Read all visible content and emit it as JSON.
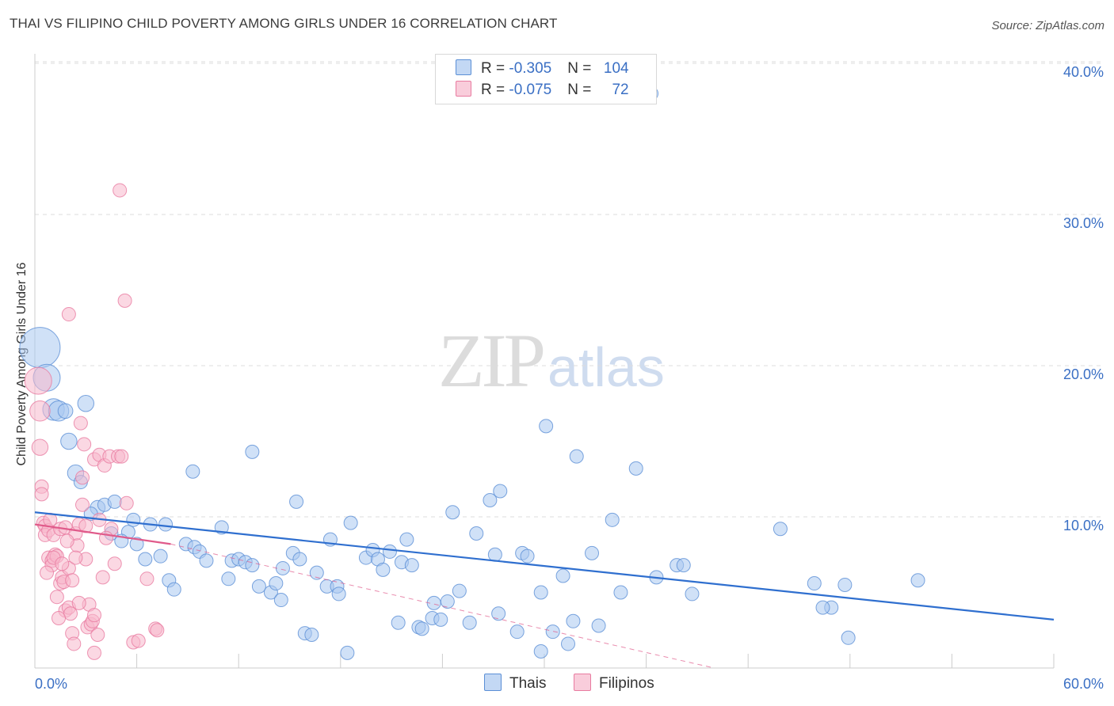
{
  "title": "THAI VS FILIPINO CHILD POVERTY AMONG GIRLS UNDER 16 CORRELATION CHART",
  "source": "Source: ZipAtlas.com",
  "watermark": {
    "zip": "ZIP",
    "atlas": "atlas"
  },
  "legend": {
    "rows": [
      {
        "r_label": "R = ",
        "r_value": "-0.305",
        "n_label": "N = ",
        "n_value": "104"
      },
      {
        "r_label": "R = ",
        "r_value": "-0.075",
        "n_label": "N = ",
        "n_value": "72"
      }
    ]
  },
  "bottom_legend": {
    "thais": "Thais",
    "filipinos": "Filipinos"
  },
  "colors": {
    "thais_fill": "#a9c8f0",
    "thais_stroke": "#5b8fd6",
    "thais_line": "#2f6fcf",
    "filipinos_fill": "#f7b8cc",
    "filipinos_stroke": "#e87ba0",
    "filipinos_line": "#e05a8a",
    "tick_label": "#3a6fc4",
    "grid": "#dddddd"
  },
  "chart_data": {
    "type": "scatter",
    "title": "THAI VS FILIPINO CHILD POVERTY AMONG GIRLS UNDER 16 CORRELATION CHART",
    "xlabel": "",
    "ylabel": "Child Poverty Among Girls Under 16",
    "xlim": [
      0,
      60
    ],
    "ylim": [
      0,
      40
    ],
    "x_tick_labels": [
      "0.0%",
      "60.0%"
    ],
    "y_ticks": [
      10,
      20,
      30,
      40
    ],
    "y_tick_labels": [
      "10.0%",
      "20.0%",
      "30.0%",
      "40.0%"
    ],
    "grid": true,
    "series": [
      {
        "name": "Thais",
        "R": -0.305,
        "N": 104,
        "trend": {
          "x": [
            0,
            60
          ],
          "y": [
            10.3,
            3.2
          ],
          "style": "solid"
        },
        "points": [
          [
            0.3,
            21.2,
            3
          ],
          [
            0.7,
            19.2,
            2
          ],
          [
            1.1,
            17.1,
            1.6
          ],
          [
            1.4,
            17.0,
            1.5
          ],
          [
            3.0,
            17.5,
            1.2
          ],
          [
            2.0,
            15.0,
            1.2
          ],
          [
            2.4,
            12.9,
            1.2
          ],
          [
            2.7,
            12.3,
            1
          ],
          [
            3.7,
            10.6,
            1.1
          ],
          [
            4.1,
            10.8,
            1
          ],
          [
            4.7,
            11.0,
            1
          ],
          [
            3.3,
            10.2,
            1
          ],
          [
            4.5,
            8.9,
            1
          ],
          [
            5.5,
            9.0,
            1
          ],
          [
            5.8,
            9.8,
            1
          ],
          [
            6.0,
            8.2,
            1
          ],
          [
            5.1,
            8.4,
            1
          ],
          [
            6.8,
            9.5,
            1
          ],
          [
            7.7,
            9.5,
            1
          ],
          [
            6.5,
            7.2,
            1
          ],
          [
            7.4,
            7.4,
            1
          ],
          [
            7.9,
            5.8,
            1
          ],
          [
            8.2,
            5.2,
            1
          ],
          [
            8.9,
            8.2,
            1
          ],
          [
            9.4,
            8.0,
            1
          ],
          [
            9.7,
            7.7,
            1
          ],
          [
            10.1,
            7.1,
            1
          ],
          [
            9.3,
            13.0,
            1
          ],
          [
            11.0,
            9.3,
            1
          ],
          [
            11.4,
            5.9,
            1
          ],
          [
            11.6,
            7.1,
            1
          ],
          [
            12.0,
            7.2,
            1
          ],
          [
            12.4,
            7.0,
            1
          ],
          [
            12.8,
            6.8,
            1
          ],
          [
            13.2,
            5.4,
            1
          ],
          [
            13.9,
            5.0,
            1
          ],
          [
            14.2,
            5.6,
            1
          ],
          [
            14.5,
            4.5,
            1
          ],
          [
            12.8,
            14.3,
            1
          ],
          [
            14.6,
            6.6,
            1
          ],
          [
            15.2,
            7.6,
            1
          ],
          [
            15.6,
            7.2,
            1
          ],
          [
            15.4,
            11.0,
            1
          ],
          [
            15.9,
            2.3,
            1
          ],
          [
            16.3,
            2.2,
            1
          ],
          [
            16.6,
            6.3,
            1
          ],
          [
            17.2,
            5.4,
            1
          ],
          [
            17.4,
            8.5,
            1
          ],
          [
            17.8,
            5.4,
            1
          ],
          [
            17.9,
            4.9,
            1
          ],
          [
            18.6,
            9.6,
            1
          ],
          [
            18.4,
            1.0,
            1
          ],
          [
            19.5,
            7.3,
            1
          ],
          [
            19.9,
            7.8,
            1
          ],
          [
            20.2,
            7.2,
            1
          ],
          [
            20.5,
            6.5,
            1
          ],
          [
            20.9,
            7.7,
            1
          ],
          [
            21.4,
            3.0,
            1
          ],
          [
            21.6,
            7.0,
            1
          ],
          [
            22.2,
            6.8,
            1
          ],
          [
            21.9,
            8.5,
            1
          ],
          [
            22.6,
            2.7,
            1
          ],
          [
            22.8,
            2.6,
            1
          ],
          [
            23.4,
            3.3,
            1
          ],
          [
            23.5,
            4.3,
            1
          ],
          [
            23.9,
            3.2,
            1
          ],
          [
            24.3,
            4.4,
            1
          ],
          [
            24.6,
            10.3,
            1
          ],
          [
            25.0,
            5.1,
            1
          ],
          [
            25.6,
            3.0,
            1
          ],
          [
            26.0,
            8.9,
            1
          ],
          [
            26.8,
            11.1,
            1
          ],
          [
            27.1,
            7.5,
            1
          ],
          [
            27.4,
            11.7,
            1
          ],
          [
            27.3,
            3.6,
            1
          ],
          [
            28.4,
            2.4,
            1
          ],
          [
            28.7,
            7.6,
            1
          ],
          [
            29.0,
            7.4,
            1
          ],
          [
            29.8,
            5.0,
            1
          ],
          [
            30.1,
            16.0,
            1
          ],
          [
            30.5,
            2.4,
            1
          ],
          [
            31.1,
            6.1,
            1
          ],
          [
            31.4,
            1.6,
            1
          ],
          [
            31.7,
            3.1,
            1
          ],
          [
            31.9,
            14.0,
            1
          ],
          [
            32.8,
            7.6,
            1
          ],
          [
            33.2,
            2.8,
            1
          ],
          [
            34.0,
            9.8,
            1
          ],
          [
            34.5,
            5.0,
            1
          ],
          [
            35.4,
            13.2,
            1
          ],
          [
            36.6,
            6.0,
            1
          ],
          [
            37.8,
            6.8,
            1
          ],
          [
            38.2,
            6.8,
            1
          ],
          [
            38.7,
            4.9,
            1
          ],
          [
            43.9,
            9.2,
            1
          ],
          [
            45.9,
            5.6,
            1
          ],
          [
            46.9,
            4.0,
            1
          ],
          [
            47.7,
            5.5,
            1
          ],
          [
            47.9,
            2.0,
            1
          ],
          [
            52.0,
            5.8,
            1
          ],
          [
            29.8,
            1.1,
            1
          ],
          [
            46.4,
            4.0,
            1
          ],
          [
            36.3,
            38.0,
            1
          ],
          [
            1.8,
            17.0,
            1.1
          ]
        ]
      },
      {
        "name": "Filipinos",
        "R": -0.075,
        "N": 72,
        "trend": {
          "x": [
            0,
            8
          ],
          "y": [
            9.5,
            8.2
          ],
          "style": "solid"
        },
        "trend_extended": {
          "x": [
            8,
            40
          ],
          "y": [
            8.2,
            0
          ],
          "style": "dashed"
        },
        "points": [
          [
            0.2,
            19.0,
            2
          ],
          [
            0.3,
            17.0,
            1.5
          ],
          [
            0.3,
            14.6,
            1.2
          ],
          [
            0.4,
            12.0,
            1
          ],
          [
            0.4,
            11.5,
            1
          ],
          [
            0.5,
            9.6,
            1
          ],
          [
            0.6,
            9.4,
            1
          ],
          [
            0.6,
            8.8,
            1
          ],
          [
            0.8,
            9.1,
            1
          ],
          [
            0.8,
            7.3,
            1
          ],
          [
            1.0,
            7.1,
            1
          ],
          [
            1.0,
            6.8,
            1
          ],
          [
            1.2,
            7.5,
            1
          ],
          [
            1.3,
            7.4,
            1
          ],
          [
            1.1,
            8.8,
            1
          ],
          [
            1.5,
            9.2,
            1
          ],
          [
            1.3,
            4.7,
            1
          ],
          [
            1.5,
            5.6,
            1
          ],
          [
            1.6,
            6.0,
            1
          ],
          [
            1.7,
            5.7,
            1
          ],
          [
            1.8,
            9.3,
            1
          ],
          [
            1.8,
            3.8,
            1
          ],
          [
            2.0,
            6.6,
            1
          ],
          [
            2.0,
            4.0,
            1
          ],
          [
            2.1,
            3.6,
            1
          ],
          [
            2.2,
            2.3,
            1
          ],
          [
            2.3,
            1.6,
            1
          ],
          [
            2.4,
            8.9,
            1
          ],
          [
            2.5,
            8.1,
            1
          ],
          [
            2.6,
            9.5,
            1
          ],
          [
            2.7,
            16.2,
            1
          ],
          [
            2.8,
            10.8,
            1
          ],
          [
            2.8,
            12.6,
            1
          ],
          [
            2.9,
            14.8,
            1
          ],
          [
            3.0,
            7.2,
            1
          ],
          [
            3.1,
            2.7,
            1
          ],
          [
            3.2,
            4.2,
            1
          ],
          [
            3.3,
            2.9,
            1
          ],
          [
            3.4,
            3.1,
            1
          ],
          [
            3.5,
            3.5,
            1
          ],
          [
            3.5,
            1.0,
            1
          ],
          [
            3.5,
            13.8,
            1
          ],
          [
            3.8,
            14.1,
            1
          ],
          [
            3.8,
            9.8,
            1
          ],
          [
            4.0,
            6.0,
            1
          ],
          [
            4.1,
            13.4,
            1
          ],
          [
            4.4,
            14.0,
            1
          ],
          [
            4.5,
            9.2,
            1
          ],
          [
            4.7,
            6.9,
            1
          ],
          [
            4.9,
            14.0,
            1
          ],
          [
            5.1,
            14.0,
            1
          ],
          [
            5.4,
            10.9,
            1
          ],
          [
            5.8,
            1.7,
            1
          ],
          [
            6.1,
            1.8,
            1
          ],
          [
            6.6,
            5.9,
            1
          ],
          [
            7.1,
            2.6,
            1
          ],
          [
            7.2,
            2.5,
            1
          ],
          [
            5.3,
            24.3,
            1
          ],
          [
            2.0,
            23.4,
            1
          ],
          [
            5.0,
            31.6,
            1
          ],
          [
            1.1,
            7.3,
            1
          ],
          [
            2.4,
            7.3,
            1
          ],
          [
            1.6,
            6.9,
            1
          ],
          [
            2.2,
            5.8,
            1
          ],
          [
            0.9,
            9.8,
            1
          ],
          [
            3.0,
            9.4,
            1
          ],
          [
            1.9,
            8.4,
            1
          ],
          [
            4.2,
            8.6,
            1
          ],
          [
            2.6,
            4.3,
            1
          ],
          [
            0.7,
            6.3,
            1
          ],
          [
            1.4,
            3.3,
            1
          ],
          [
            3.7,
            2.2,
            1
          ]
        ]
      }
    ]
  }
}
